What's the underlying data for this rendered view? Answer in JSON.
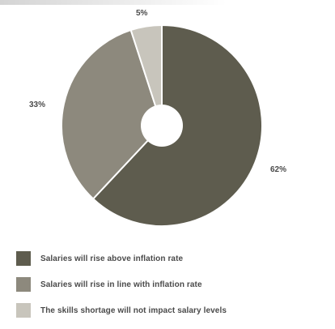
{
  "chart_data": {
    "type": "pie",
    "categories": [
      "Salaries will rise above inflation rate",
      "Salaries will rise in line with inflation rate",
      "The skills shortage will not impact salary levels"
    ],
    "values": [
      62,
      33,
      5
    ],
    "value_labels": [
      "62%",
      "33%",
      "5%"
    ],
    "colors": [
      "#5e5c4e",
      "#8d897d",
      "#c8c5bc"
    ],
    "style": "donut",
    "legend_position": "bottom"
  }
}
